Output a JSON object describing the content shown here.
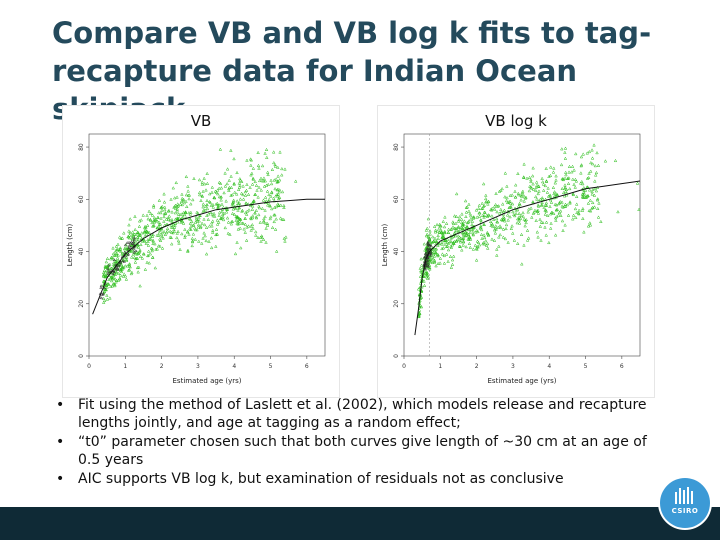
{
  "slide": {
    "title": "Compare VB and VB log k fits to tag-recapture data for Indian Ocean skipjack"
  },
  "plots": [
    {
      "title": "VB",
      "xlabel": "Estimated age (yrs)",
      "ylabel": "Length (cm)",
      "xticks": [
        "0",
        "1",
        "2",
        "3",
        "4",
        "5",
        "6"
      ],
      "yticks": [
        "0",
        "20",
        "40",
        "60",
        "80"
      ]
    },
    {
      "title": "VB log k",
      "xlabel": "Estimated age (yrs)",
      "ylabel": "Length (cm)",
      "xticks": [
        "0",
        "1",
        "2",
        "3",
        "4",
        "5",
        "6"
      ],
      "yticks": [
        "0",
        "20",
        "40",
        "60",
        "80"
      ]
    }
  ],
  "chart_data": [
    {
      "type": "scatter",
      "title": "VB",
      "xlabel": "Estimated age (yrs)",
      "ylabel": "Length (cm)",
      "xlim": [
        0,
        6.5
      ],
      "ylim": [
        0,
        85
      ],
      "point_color": "#2fbf1f",
      "fit_curve": {
        "x": [
          0.1,
          0.5,
          1,
          1.5,
          2,
          2.5,
          3,
          3.5,
          4,
          4.5,
          5,
          5.5,
          6,
          6.5
        ],
        "y": [
          16,
          30,
          39,
          45,
          49,
          52,
          54,
          56,
          57,
          58,
          59,
          59.5,
          60,
          60
        ]
      }
    },
    {
      "type": "scatter",
      "title": "VB log k",
      "xlabel": "Estimated age (yrs)",
      "ylabel": "Length (cm)",
      "xlim": [
        0,
        6.5
      ],
      "ylim": [
        0,
        85
      ],
      "point_color": "#2fbf1f",
      "fit_curve": {
        "x": [
          0.3,
          0.4,
          0.5,
          0.6,
          0.7,
          1,
          1.5,
          2,
          2.5,
          3,
          3.5,
          4,
          4.5,
          5,
          5.5,
          6,
          6.5
        ],
        "y": [
          8,
          18,
          30,
          37,
          40,
          44,
          47,
          50,
          53,
          56,
          58,
          60,
          62,
          64,
          65,
          66,
          67
        ]
      }
    }
  ],
  "bullets": [
    "Fit using the method of Laslett et al. (2002), which models release and recapture lengths jointly, and age at tagging as a random effect;",
    "“t0” parameter chosen such that both curves give length of ~30 cm at an age of 0.5 years",
    "AIC supports VB log k, but examination of residuals not as conclusive"
  ],
  "logo": {
    "text": "CSIRO"
  },
  "colors": {
    "title": "#244a5c",
    "points": "#2fbf1f",
    "bar": "#0f2a36",
    "logo": "#3c9ad6"
  }
}
